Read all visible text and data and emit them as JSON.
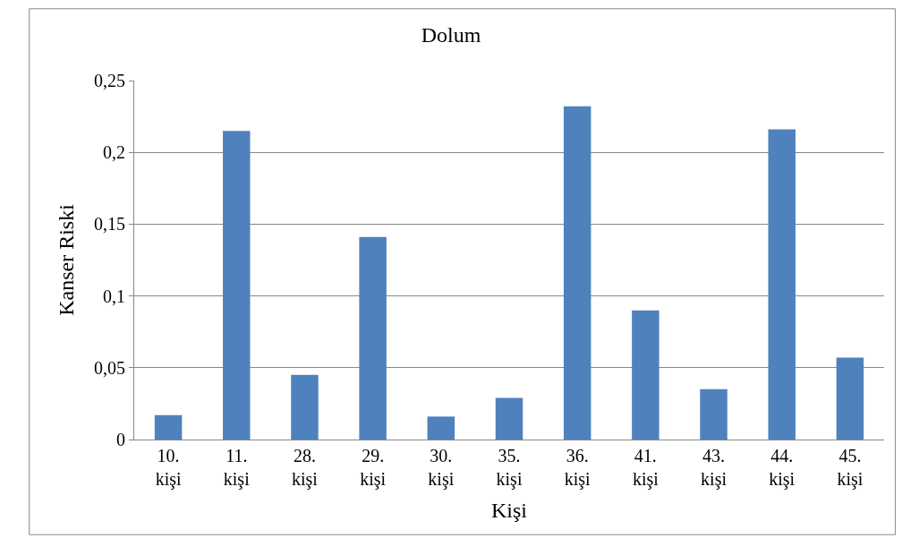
{
  "chart_data": {
    "type": "bar",
    "title": "Dolum",
    "xlabel": "Kişi",
    "ylabel": "Kanser Riski",
    "categories": [
      "10. kişi",
      "11. kişi",
      "28. kişi",
      "29. kişi",
      "30. kişi",
      "35. kişi",
      "36. kişi",
      "41. kişi",
      "43. kişi",
      "44. kişi",
      "45. kişi"
    ],
    "values": [
      0.017,
      0.215,
      0.045,
      0.141,
      0.016,
      0.029,
      0.232,
      0.09,
      0.035,
      0.216,
      0.057
    ],
    "color": "#4f81bd",
    "ylim": [
      0,
      0.25
    ],
    "yticks": [
      {
        "value": 0,
        "label": "0"
      },
      {
        "value": 0.05,
        "label": "0,05"
      },
      {
        "value": 0.1,
        "label": "0,1"
      },
      {
        "value": 0.15,
        "label": "0,15"
      },
      {
        "value": 0.2,
        "label": "0,2"
      },
      {
        "value": 0.25,
        "label": "0,25"
      }
    ],
    "grid": "y"
  }
}
